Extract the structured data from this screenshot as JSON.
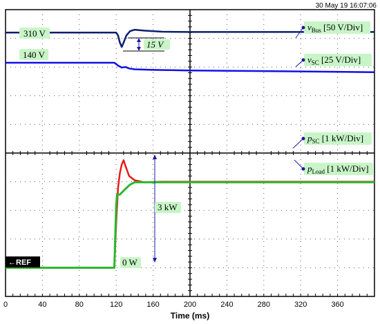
{
  "timestamp": "30 May 19  16:07:06",
  "ref_marker": "←REF",
  "colors": {
    "label_bg": "#c8f5c8",
    "annotation": "#1a1aa8",
    "v_bus": "#0a1e6e",
    "v_sc": "#1010e6",
    "p_sc": "#e61a1a",
    "p_load": "#2ab82a",
    "grid_major": "#000000",
    "grid_dot": "#555555"
  },
  "labels": {
    "v_bus_level": "310 V",
    "v_sc_level": "140 V",
    "dip": "15 V",
    "zero_power": "0 W",
    "step": "3 kW"
  },
  "signals": {
    "v_bus": {
      "sym": "v",
      "sub": "Bus",
      "scale": " [50 V/Div]"
    },
    "v_sc": {
      "sym": "v",
      "sub": "SC",
      "scale": " [25 V/Div]"
    },
    "p_sc": {
      "sym": "p",
      "sub": "SC",
      "scale": " [1 kW/Div]"
    },
    "p_load": {
      "sym": "p",
      "sub": "Load",
      "scale": " [1 kW/Div]"
    }
  },
  "chart_data": {
    "type": "line",
    "xlabel": "Time (ms)",
    "xlim": [
      0,
      400
    ],
    "xticks": [
      0,
      40,
      80,
      120,
      160,
      200,
      240,
      280,
      320,
      360
    ],
    "divisions_y": 10,
    "ylim_div": [
      0,
      10
    ],
    "series": [
      {
        "name": "vBus",
        "unit_per_div": "50 V",
        "x": [
          0,
          120,
          122,
          124,
          126,
          128,
          131,
          135,
          140,
          150,
          170,
          200,
          400
        ],
        "y_div": [
          9.2,
          9.2,
          9.1,
          8.85,
          8.7,
          8.85,
          9.1,
          9.25,
          9.3,
          9.27,
          9.23,
          9.22,
          9.22
        ]
      },
      {
        "name": "vSC",
        "unit_per_div": "25 V",
        "x": [
          0,
          118,
          122,
          126,
          130,
          134,
          140,
          160,
          200,
          300,
          400
        ],
        "y_div": [
          8.15,
          8.15,
          8.05,
          7.98,
          8.0,
          7.95,
          7.92,
          7.9,
          7.88,
          7.85,
          7.82
        ]
      },
      {
        "name": "pSC",
        "unit_per_div": "1 kW",
        "x": [
          0,
          118,
          120,
          122,
          124,
          126,
          128,
          130,
          134,
          140,
          150,
          170,
          200,
          400
        ],
        "y_div": [
          1.0,
          1.0,
          2.6,
          3.8,
          4.3,
          4.6,
          4.75,
          4.55,
          4.2,
          4.05,
          3.98,
          4.0,
          4.0,
          4.0
        ]
      },
      {
        "name": "pLoad",
        "unit_per_div": "1 kW",
        "x": [
          0,
          118,
          120,
          121,
          124,
          126,
          130,
          135,
          140,
          200,
          400
        ],
        "y_div": [
          1.0,
          1.0,
          3.2,
          3.55,
          3.55,
          3.62,
          3.75,
          3.9,
          3.98,
          3.98,
          3.98
        ]
      }
    ]
  }
}
